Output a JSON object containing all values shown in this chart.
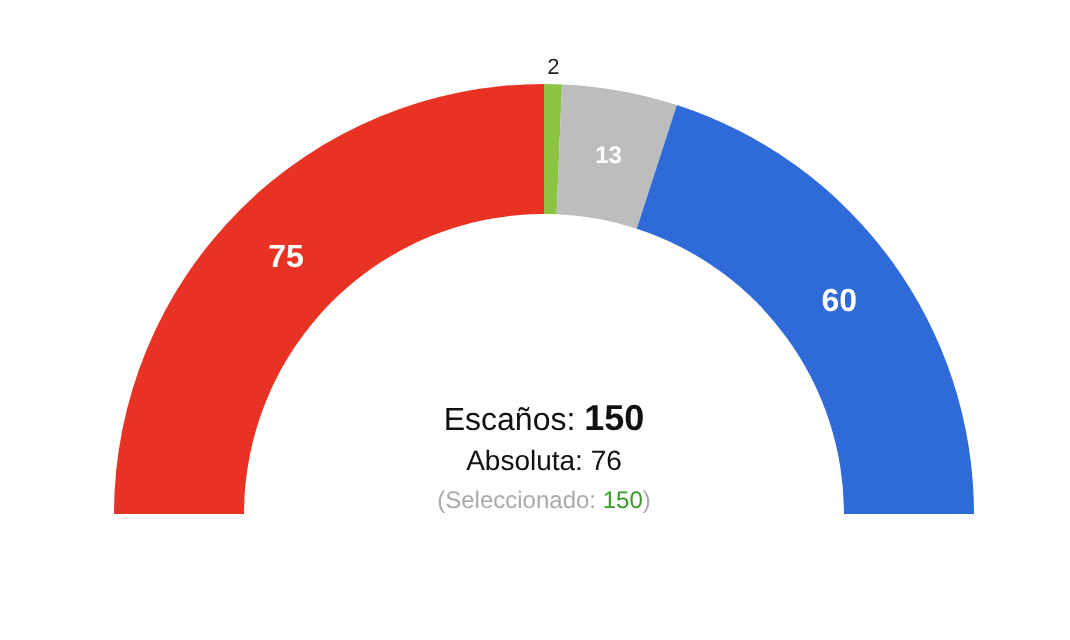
{
  "chart_data": {
    "type": "donut",
    "categories": [
      null,
      null,
      null,
      null
    ],
    "values": [
      75,
      2,
      13,
      60
    ],
    "colors": [
      "#e83324",
      "#8bc443",
      "#bdbdbd",
      "#2f6bd8"
    ],
    "data_labels": true,
    "annotations": [
      "Escaños: 150",
      "Absoluta: 76",
      "(Seleccionado: 150)"
    ]
  }
}
